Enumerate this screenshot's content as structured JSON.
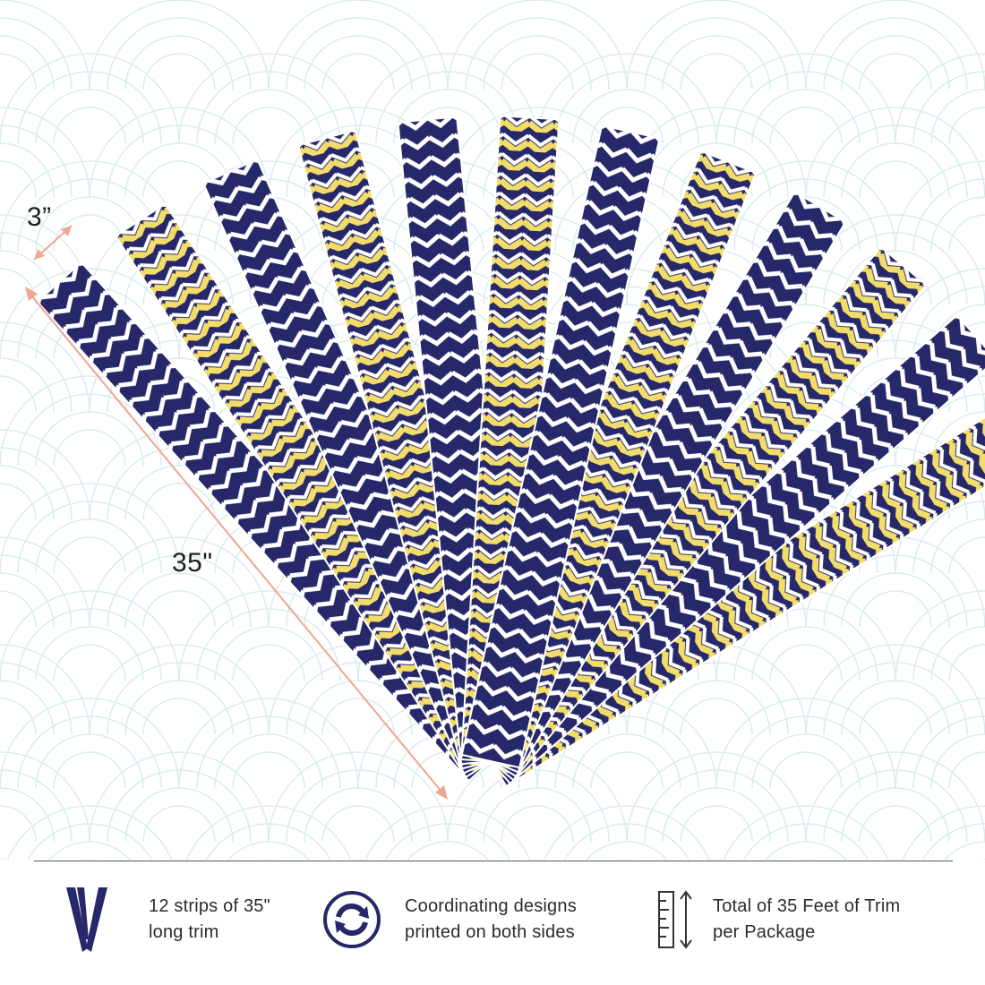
{
  "colors": {
    "navy": "#27286a",
    "yellow": "#f3dd6a",
    "yellow_dot": "#f7ea9e",
    "white": "#ffffff",
    "arc_line": "#d9ecef",
    "measure": "#f0a58f"
  },
  "dimensions": {
    "width_label": "3”",
    "length_label": "35\""
  },
  "features": [
    {
      "icon": "v-strips-icon",
      "line1": "12 strips of 35\"",
      "line2": "long trim"
    },
    {
      "icon": "double-sided-arrows-icon",
      "line1": "Coordinating designs",
      "line2": "printed on both sides"
    },
    {
      "icon": "ruler-icon",
      "line1": "Total of 35 Feet of Trim",
      "line2": "per Package"
    }
  ]
}
